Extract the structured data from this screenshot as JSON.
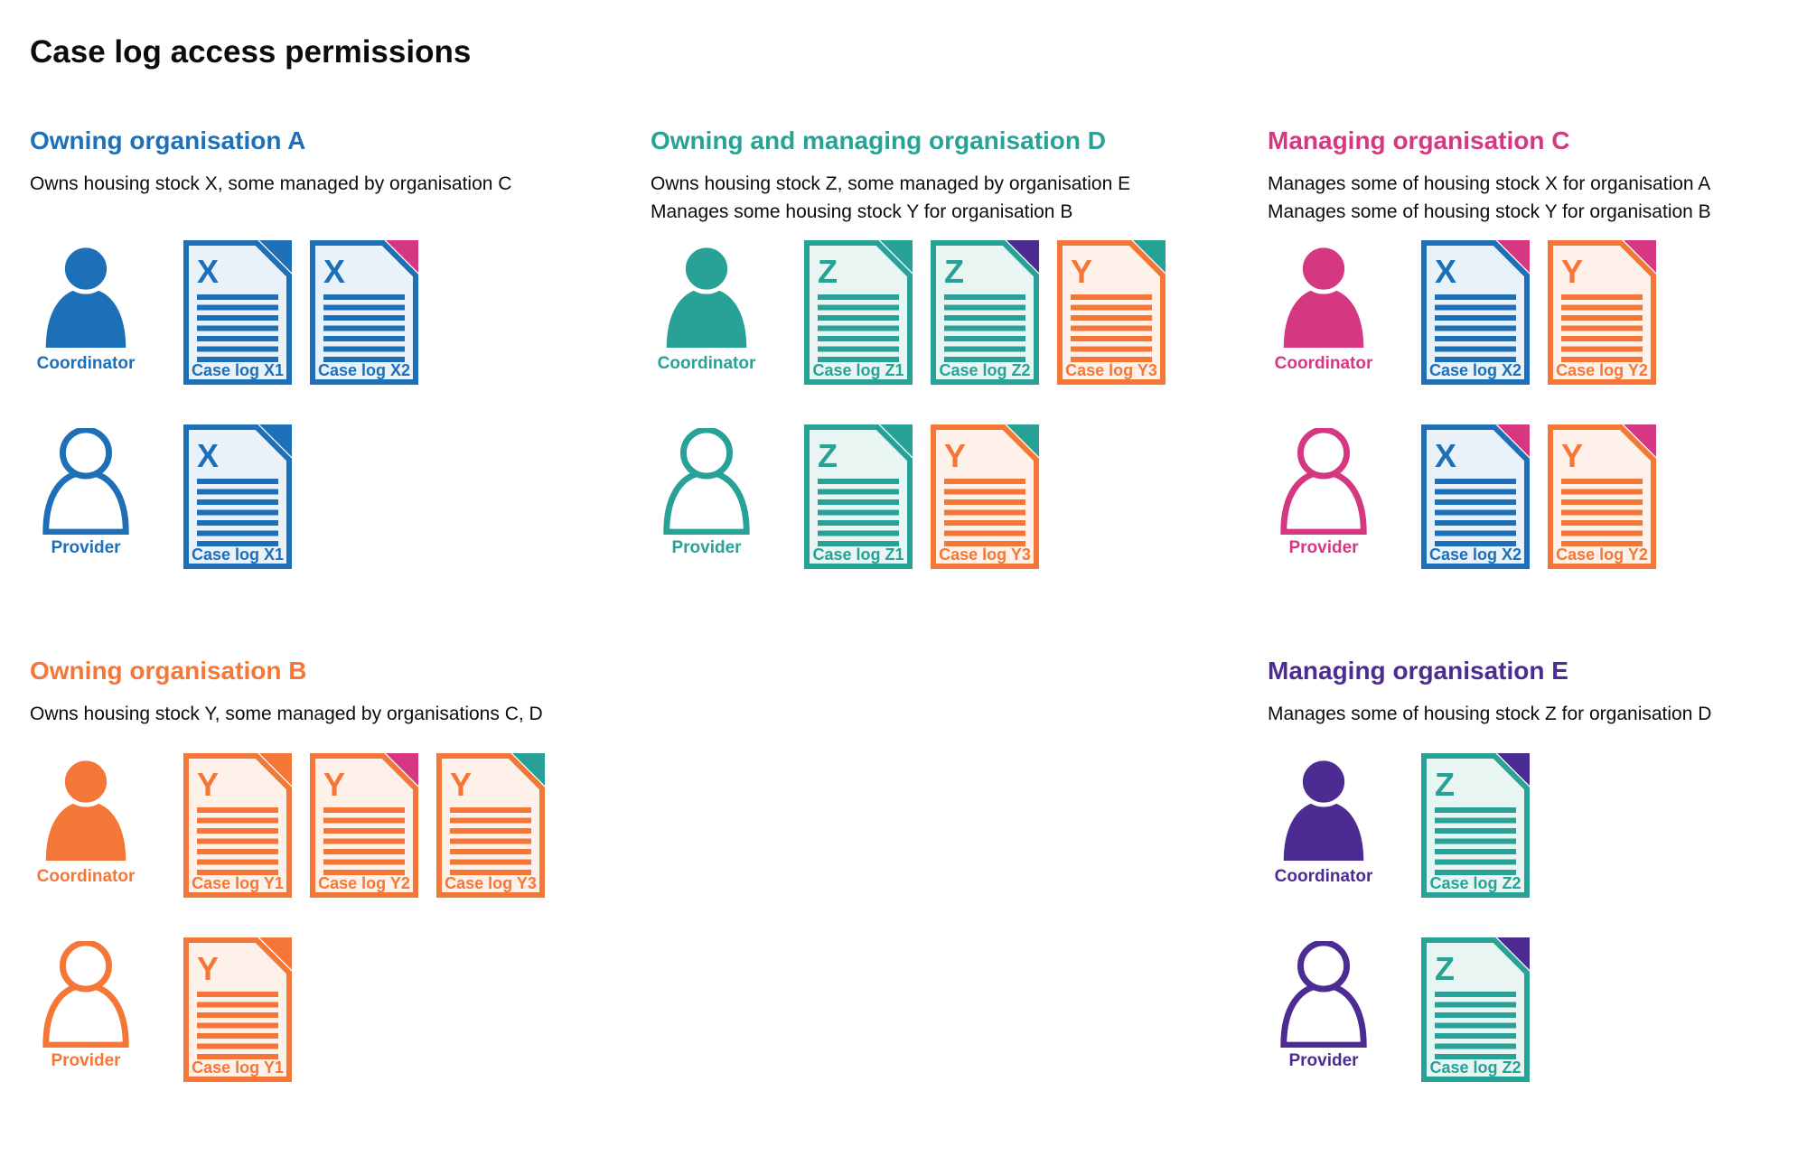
{
  "title": "Case log access permissions",
  "colors": {
    "blue": "#1d70b8",
    "blue_tint": "#eaf2f9",
    "teal": "#28a197",
    "teal_tint": "#e9f5f3",
    "orange": "#f47738",
    "orange_tint": "#fdf1ea",
    "pink": "#d53880",
    "purple": "#4c2c92",
    "text": "#0b0c0c"
  },
  "organisations": [
    {
      "id": "org-a",
      "heading": "Owning organisation A",
      "color": "blue",
      "position": "top-left",
      "description": [
        "Owns housing stock X, some managed by organisation C"
      ],
      "roles": [
        {
          "label": "Coordinator",
          "icon": "person-filled",
          "documents": [
            {
              "letter": "X",
              "label": "Case log X1",
              "doc_color": "blue",
              "fold_color": "blue"
            },
            {
              "letter": "X",
              "label": "Case log X2",
              "doc_color": "blue",
              "fold_color": "pink"
            }
          ]
        },
        {
          "label": "Provider",
          "icon": "person-outline",
          "documents": [
            {
              "letter": "X",
              "label": "Case log X1",
              "doc_color": "blue",
              "fold_color": "blue"
            }
          ]
        }
      ]
    },
    {
      "id": "org-d",
      "heading": "Owning and managing organisation D",
      "color": "teal",
      "position": "top-middle",
      "description": [
        "Owns housing stock Z, some managed by organisation E",
        "Manages some housing stock Y for organisation B"
      ],
      "roles": [
        {
          "label": "Coordinator",
          "icon": "person-filled",
          "documents": [
            {
              "letter": "Z",
              "label": "Case log Z1",
              "doc_color": "teal",
              "fold_color": "teal"
            },
            {
              "letter": "Z",
              "label": "Case log Z2",
              "doc_color": "teal",
              "fold_color": "purple"
            },
            {
              "letter": "Y",
              "label": "Case log Y3",
              "doc_color": "orange",
              "fold_color": "teal"
            }
          ]
        },
        {
          "label": "Provider",
          "icon": "person-outline",
          "documents": [
            {
              "letter": "Z",
              "label": "Case log Z1",
              "doc_color": "teal",
              "fold_color": "teal"
            },
            {
              "letter": "Y",
              "label": "Case log Y3",
              "doc_color": "orange",
              "fold_color": "teal"
            }
          ]
        }
      ]
    },
    {
      "id": "org-c",
      "heading": "Managing organisation C",
      "color": "pink",
      "position": "top-right",
      "description": [
        "Manages some of housing stock X for organisation A",
        "Manages some of housing stock Y for organisation B"
      ],
      "roles": [
        {
          "label": "Coordinator",
          "icon": "person-filled",
          "documents": [
            {
              "letter": "X",
              "label": "Case log X2",
              "doc_color": "blue",
              "fold_color": "pink"
            },
            {
              "letter": "Y",
              "label": "Case log Y2",
              "doc_color": "orange",
              "fold_color": "pink"
            }
          ]
        },
        {
          "label": "Provider",
          "icon": "person-outline",
          "documents": [
            {
              "letter": "X",
              "label": "Case log X2",
              "doc_color": "blue",
              "fold_color": "pink"
            },
            {
              "letter": "Y",
              "label": "Case log Y2",
              "doc_color": "orange",
              "fold_color": "pink"
            }
          ]
        }
      ]
    },
    {
      "id": "org-b",
      "heading": "Owning organisation B",
      "color": "orange",
      "position": "bottom-left",
      "description": [
        "Owns housing stock Y, some managed by organisations C, D"
      ],
      "roles": [
        {
          "label": "Coordinator",
          "icon": "person-filled",
          "documents": [
            {
              "letter": "Y",
              "label": "Case log Y1",
              "doc_color": "orange",
              "fold_color": "orange"
            },
            {
              "letter": "Y",
              "label": "Case log Y2",
              "doc_color": "orange",
              "fold_color": "pink"
            },
            {
              "letter": "Y",
              "label": "Case log Y3",
              "doc_color": "orange",
              "fold_color": "teal"
            }
          ]
        },
        {
          "label": "Provider",
          "icon": "person-outline",
          "documents": [
            {
              "letter": "Y",
              "label": "Case log Y1",
              "doc_color": "orange",
              "fold_color": "orange"
            }
          ]
        }
      ]
    },
    {
      "id": "org-e",
      "heading": "Managing organisation E",
      "color": "purple",
      "position": "bottom-right",
      "description": [
        "Manages some of housing stock Z for organisation D"
      ],
      "roles": [
        {
          "label": "Coordinator",
          "icon": "person-filled",
          "documents": [
            {
              "letter": "Z",
              "label": "Case log Z2",
              "doc_color": "teal",
              "fold_color": "purple"
            }
          ]
        },
        {
          "label": "Provider",
          "icon": "person-outline",
          "documents": [
            {
              "letter": "Z",
              "label": "Case log Z2",
              "doc_color": "teal",
              "fold_color": "purple"
            }
          ]
        }
      ]
    }
  ]
}
